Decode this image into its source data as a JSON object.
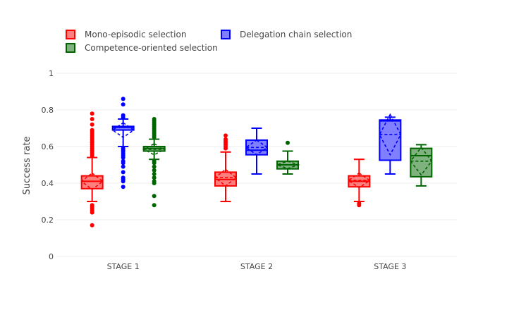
{
  "chart_data": {
    "type": "box",
    "ylabel": "Success rate",
    "xlabel": "",
    "ylim": [
      0,
      1
    ],
    "yticks": [
      0,
      0.2,
      0.4,
      0.6,
      0.8,
      1
    ],
    "ytick_labels": [
      "0",
      "0.2",
      "0.4",
      "0.6",
      "0.8",
      "1"
    ],
    "categories": [
      "STAGE 1",
      "STAGE 2",
      "STAGE 3"
    ],
    "grid": true,
    "legend_position": "top-left",
    "series": [
      {
        "name": "Mono-episodic selection",
        "color": "#ff0000",
        "fill": "#ff7f7f",
        "boxes": [
          {
            "q1": 0.37,
            "median": 0.41,
            "q3": 0.44,
            "mean": 0.41,
            "sd": 0.045,
            "lower_fence": 0.3,
            "upper_fence": 0.54,
            "outliers": [
              0.17,
              0.24,
              0.25,
              0.26,
              0.27,
              0.28,
              0.55,
              0.56,
              0.57,
              0.58,
              0.59,
              0.6,
              0.61,
              0.62,
              0.63,
              0.64,
              0.65,
              0.66,
              0.67,
              0.68,
              0.69,
              0.72,
              0.75,
              0.78
            ]
          },
          {
            "q1": 0.385,
            "median": 0.42,
            "q3": 0.46,
            "mean": 0.43,
            "sd": 0.045,
            "lower_fence": 0.3,
            "upper_fence": 0.57,
            "outliers": [
              0.59,
              0.6,
              0.61,
              0.62,
              0.63,
              0.64,
              0.66
            ]
          },
          {
            "q1": 0.38,
            "median": 0.41,
            "q3": 0.44,
            "mean": 0.415,
            "sd": 0.04,
            "lower_fence": 0.3,
            "upper_fence": 0.53,
            "outliers": [
              0.28,
              0.29
            ]
          }
        ]
      },
      {
        "name": "Delegation chain selection",
        "color": "#0000ff",
        "fill": "#7f7fff",
        "boxes": [
          {
            "q1": 0.69,
            "median": 0.705,
            "q3": 0.71,
            "mean": 0.69,
            "sd": 0.04,
            "lower_fence": 0.6,
            "upper_fence": 0.75,
            "outliers": [
              0.38,
              0.41,
              0.42,
              0.43,
              0.46,
              0.49,
              0.51,
              0.52,
              0.54,
              0.55,
              0.56,
              0.57,
              0.58,
              0.59,
              0.76,
              0.77,
              0.83,
              0.86
            ]
          },
          {
            "q1": 0.555,
            "median": 0.58,
            "q3": 0.635,
            "mean": 0.595,
            "sd": 0.04,
            "lower_fence": 0.45,
            "upper_fence": 0.7,
            "outliers": []
          },
          {
            "q1": 0.525,
            "median": 0.74,
            "q3": 0.745,
            "mean": 0.665,
            "sd": 0.11,
            "lower_fence": 0.45,
            "upper_fence": 0.76,
            "outliers": []
          }
        ]
      },
      {
        "name": "Competence-oriented selection",
        "color": "#006400",
        "fill": "#7fb27f",
        "boxes": [
          {
            "q1": 0.575,
            "median": 0.59,
            "q3": 0.6,
            "mean": 0.585,
            "sd": 0.03,
            "lower_fence": 0.53,
            "upper_fence": 0.64,
            "outliers": [
              0.28,
              0.33,
              0.4,
              0.41,
              0.43,
              0.45,
              0.47,
              0.49,
              0.51,
              0.52,
              0.65,
              0.66,
              0.67,
              0.68,
              0.69,
              0.7,
              0.71,
              0.72,
              0.73,
              0.74,
              0.75
            ]
          },
          {
            "q1": 0.478,
            "median": 0.5,
            "q3": 0.52,
            "mean": 0.5,
            "sd": 0.02,
            "lower_fence": 0.45,
            "upper_fence": 0.575,
            "outliers": [
              0.62
            ]
          },
          {
            "q1": 0.435,
            "median": 0.55,
            "q3": 0.59,
            "mean": 0.52,
            "sd": 0.075,
            "lower_fence": 0.385,
            "upper_fence": 0.61,
            "outliers": []
          }
        ]
      }
    ]
  }
}
